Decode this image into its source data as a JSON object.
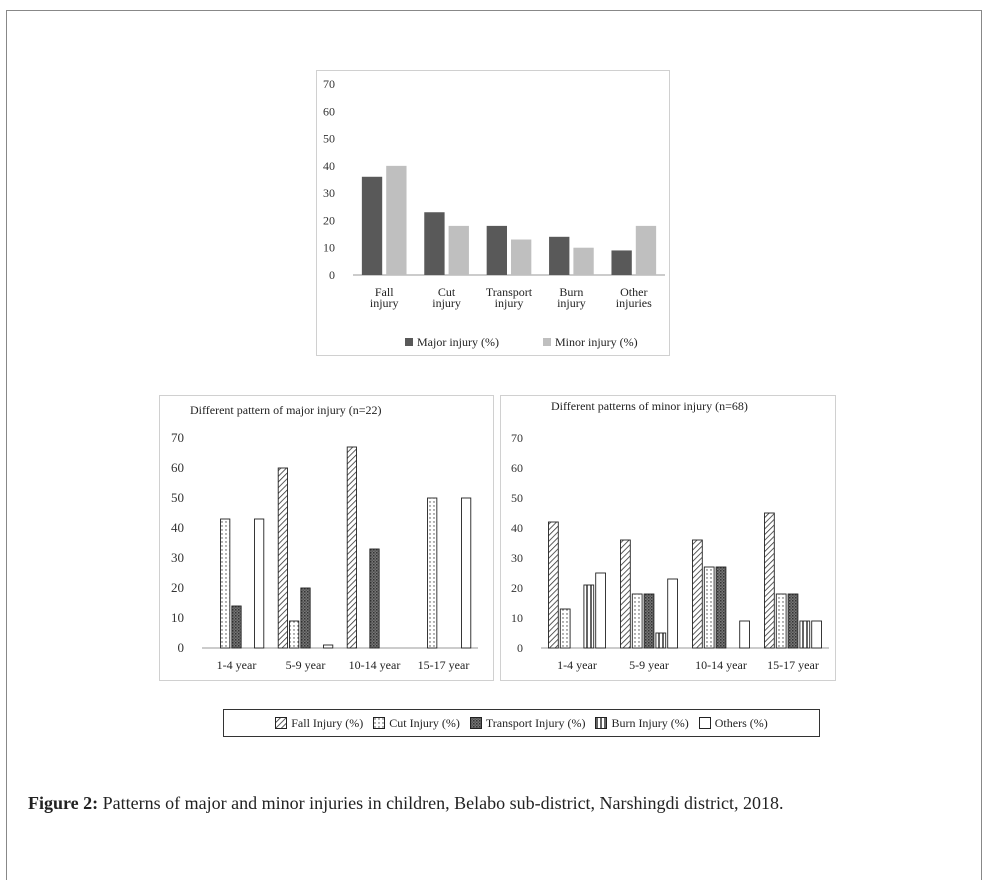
{
  "caption": {
    "label": "Figure 2:",
    "text": "Patterns of major and minor injuries in children, Belabo sub-district, Narshingdi district, 2018."
  },
  "group_legend": {
    "entries": [
      {
        "name": "Fall Injury (%)",
        "pattern": "diag"
      },
      {
        "name": "Cut Injury (%)",
        "pattern": "dots"
      },
      {
        "name": "Transport Injury (%)",
        "pattern": "grid"
      },
      {
        "name": "Burn Injury (%)",
        "pattern": "vert"
      },
      {
        "name": "Others (%)",
        "pattern": "blank"
      }
    ]
  },
  "chart_data": [
    {
      "type": "bar",
      "title": "",
      "categories": [
        "Fall injury",
        "Cut injury",
        "Transport injury",
        "Burn injury",
        "Other injuries"
      ],
      "series": [
        {
          "name": "Major injury (%)",
          "color": "#595959",
          "values": [
            36,
            23,
            18,
            14,
            9
          ]
        },
        {
          "name": "Minor injury (%)",
          "color": "#bfbfbf",
          "values": [
            40,
            18,
            13,
            10,
            18
          ]
        }
      ],
      "ylim": [
        0,
        70
      ],
      "yticks": [
        0,
        10,
        20,
        30,
        40,
        50,
        60,
        70
      ],
      "grid": false,
      "legend": "bottom"
    },
    {
      "type": "bar",
      "title": "Different  pattern of major injury (n=22)",
      "categories": [
        "1-4 year",
        "5-9 year",
        "10-14 year",
        "15-17 year"
      ],
      "series": [
        {
          "name": "Fall Injury (%)",
          "pattern": "diag",
          "values": [
            0,
            60,
            67,
            0
          ]
        },
        {
          "name": "Cut Injury (%)",
          "pattern": "dots",
          "values": [
            43,
            9,
            0,
            50
          ]
        },
        {
          "name": "Transport Injury (%)",
          "pattern": "grid",
          "values": [
            14,
            20,
            33,
            0
          ]
        },
        {
          "name": "Burn Injury (%)",
          "pattern": "vert",
          "values": [
            0,
            0,
            0,
            0
          ]
        },
        {
          "name": "Others (%)",
          "pattern": "blank",
          "values": [
            43,
            1,
            0,
            50
          ]
        }
      ],
      "ylim": [
        0,
        70
      ],
      "yticks": [
        0,
        10,
        20,
        30,
        40,
        50,
        60,
        70
      ],
      "grid": false
    },
    {
      "type": "bar",
      "title": "Different  patterns of minor injury (n=68)",
      "categories": [
        "1-4 year",
        "5-9 year",
        "10-14 year",
        "15-17 year"
      ],
      "series": [
        {
          "name": "Fall Injury (%)",
          "pattern": "diag",
          "values": [
            42,
            36,
            36,
            45
          ]
        },
        {
          "name": "Cut Injury (%)",
          "pattern": "dots",
          "values": [
            13,
            18,
            27,
            18
          ]
        },
        {
          "name": "Transport Injury (%)",
          "pattern": "grid",
          "values": [
            0,
            18,
            27,
            18
          ]
        },
        {
          "name": "Burn Injury (%)",
          "pattern": "vert",
          "values": [
            21,
            5,
            0,
            9
          ]
        },
        {
          "name": "Others (%)",
          "pattern": "blank",
          "values": [
            25,
            23,
            9,
            9
          ]
        }
      ],
      "ylim": [
        0,
        70
      ],
      "yticks": [
        0,
        10,
        20,
        30,
        40,
        50,
        60,
        70
      ],
      "grid": false
    }
  ]
}
